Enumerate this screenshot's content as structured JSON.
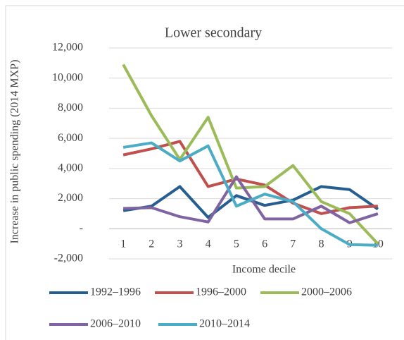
{
  "chart_data": {
    "type": "line",
    "title": "Lower secondary",
    "x_label": "Income decile",
    "y_label": "Increase in public spending  (2014 MXP)",
    "categories": [
      "1",
      "2",
      "3",
      "4",
      "5",
      "6",
      "7",
      "8",
      "9",
      "10"
    ],
    "series": [
      {
        "name": "1992–1996",
        "color": "#255e91",
        "values": [
          1200,
          1500,
          2800,
          750,
          2200,
          1550,
          1900,
          2800,
          2600,
          1300
        ]
      },
      {
        "name": "1996–2000",
        "color": "#c0504d",
        "values": [
          4900,
          5300,
          5800,
          2800,
          3300,
          2900,
          1700,
          1000,
          1400,
          1500
        ]
      },
      {
        "name": "2000–2006",
        "color": "#9bbb59",
        "values": [
          10900,
          7500,
          4600,
          7400,
          2700,
          2800,
          4200,
          1800,
          1000,
          -1000
        ]
      },
      {
        "name": "2006–2010",
        "color": "#8064a2",
        "values": [
          1350,
          1400,
          800,
          450,
          3450,
          650,
          650,
          1500,
          400,
          1000
        ]
      },
      {
        "name": "2010–2014",
        "color": "#4bacc6",
        "values": [
          5400,
          5700,
          4500,
          5500,
          1500,
          2300,
          1800,
          0,
          -1050,
          -1100
        ]
      }
    ],
    "ylim": [
      -2000,
      12000
    ],
    "yticks": [
      {
        "value": -2000,
        "label": "-2,000"
      },
      {
        "value": 0,
        "label": "-"
      },
      {
        "value": 2000,
        "label": "2,000"
      },
      {
        "value": 4000,
        "label": "4,000"
      },
      {
        "value": 6000,
        "label": "6,000"
      },
      {
        "value": 8000,
        "label": "8,000"
      },
      {
        "value": 10000,
        "label": "10,000"
      },
      {
        "value": 12000,
        "label": "12,000"
      }
    ],
    "grid": true,
    "legend": "bottom"
  }
}
